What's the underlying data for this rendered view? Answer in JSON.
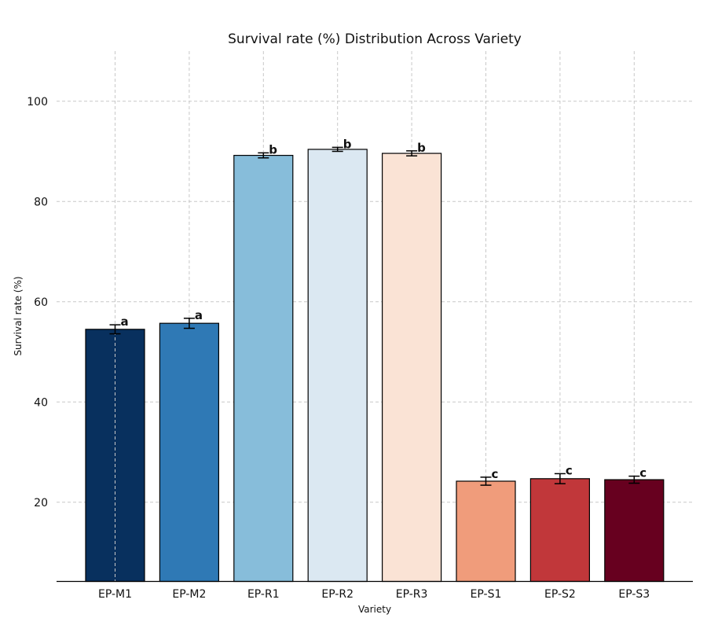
{
  "chart_data": {
    "type": "bar",
    "title": "Survival rate (%) Distribution Across Variety",
    "xlabel": "Variety",
    "ylabel": "Survival rate (%)",
    "categories": [
      "EP-M1",
      "EP-M2",
      "EP-R1",
      "EP-R2",
      "EP-R3",
      "EP-S1",
      "EP-S2",
      "EP-S3"
    ],
    "values": [
      54.5,
      55.7,
      89.2,
      90.4,
      89.6,
      24.2,
      24.7,
      24.5
    ],
    "errors": [
      0.9,
      1.0,
      0.5,
      0.4,
      0.5,
      0.8,
      1.0,
      0.7
    ],
    "significance": [
      "a",
      "a",
      "b",
      "b",
      "b",
      "c",
      "c",
      "c"
    ],
    "colors": [
      "#08305e",
      "#2f79b5",
      "#87bdda",
      "#dbe8f2",
      "#fae3d5",
      "#f09c7b",
      "#c1373a",
      "#67001f"
    ],
    "ylim": [
      4.2,
      110
    ],
    "yticks": [
      20,
      40,
      60,
      80,
      100
    ],
    "grid": true
  }
}
